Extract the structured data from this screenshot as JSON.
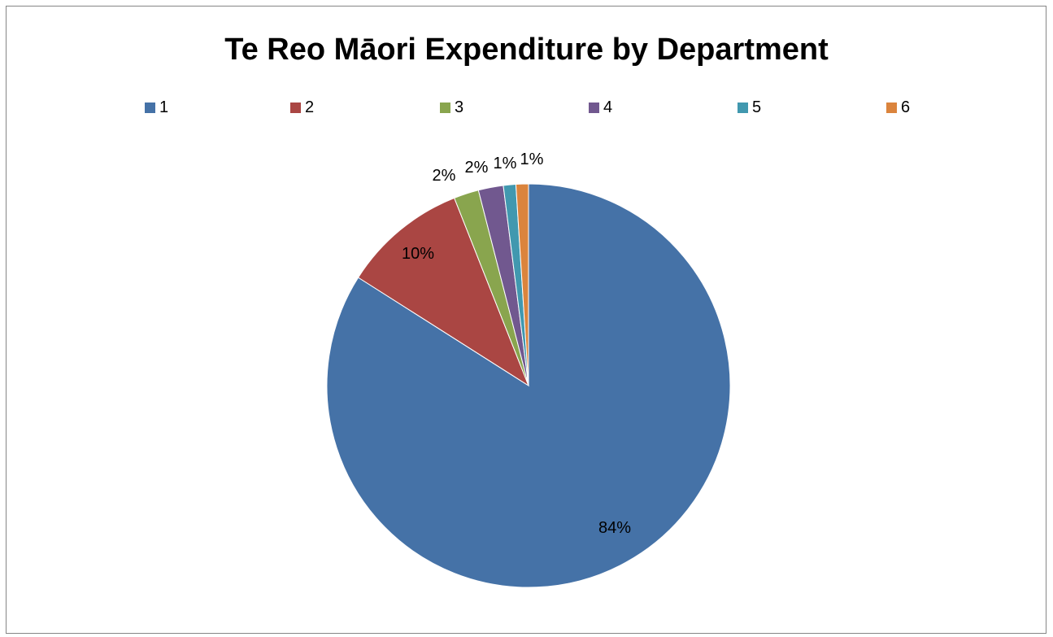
{
  "chart_data": {
    "type": "pie",
    "title": "Te Reo Māori Expenditure by Department",
    "categories": [
      "1",
      "2",
      "3",
      "4",
      "5",
      "6"
    ],
    "values": [
      84,
      10,
      2,
      2,
      1,
      1
    ],
    "data_labels": [
      "84%",
      "10%",
      "2%",
      "2%",
      "1%",
      "1%"
    ],
    "colors": [
      "#4572A7",
      "#AA4643",
      "#89A54E",
      "#71588F",
      "#4198AF",
      "#DB843D"
    ],
    "legend_position": "top",
    "start_angle": "12 o'clock",
    "direction": "clockwise"
  }
}
